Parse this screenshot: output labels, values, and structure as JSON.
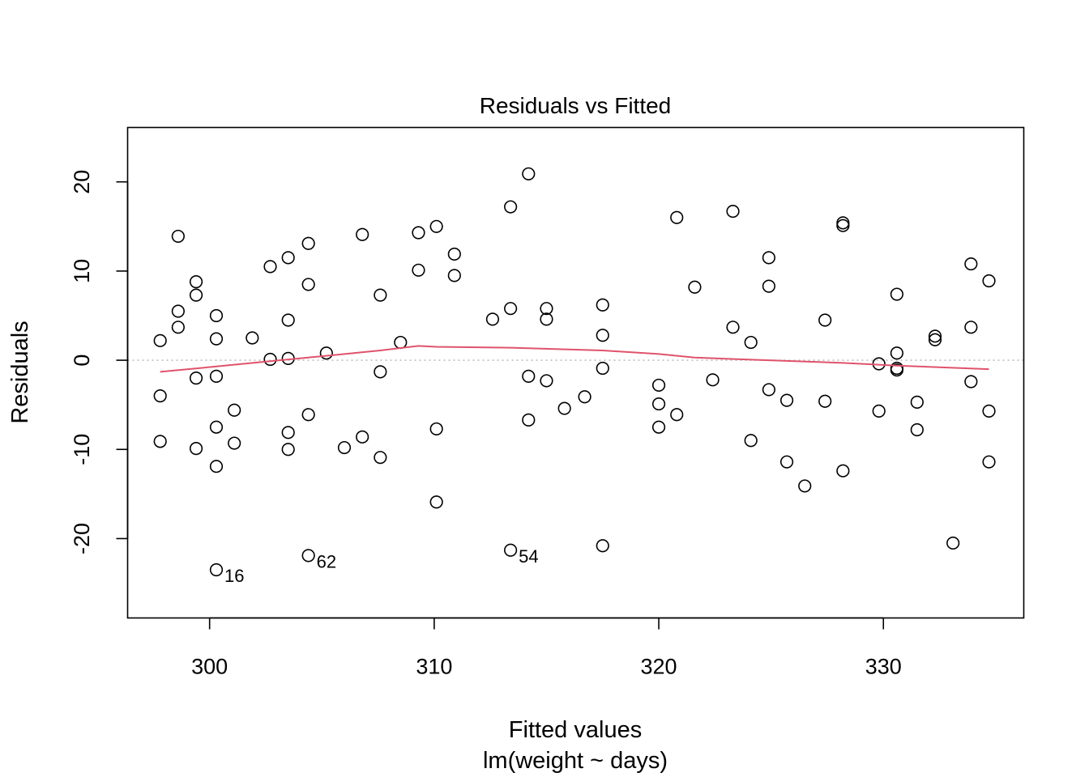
{
  "chart_data": {
    "type": "scatter",
    "title": "Residuals vs Fitted",
    "xlabel": "Fitted values",
    "sublabel": "lm(weight ~ days)",
    "ylabel": "Residuals",
    "xlim": [
      296.35,
      336.25
    ],
    "ylim": [
      -28.9,
      26.1
    ],
    "x_ticks": [
      300,
      310,
      320,
      330
    ],
    "x_tick_labels": [
      "300",
      "310",
      "320",
      "330"
    ],
    "y_ticks": [
      -20,
      -10,
      0,
      10,
      20
    ],
    "y_tick_labels": [
      "-20",
      "-10",
      "0",
      "10",
      "20"
    ],
    "zero_line": {
      "y": 0,
      "color": "#bebebe",
      "style": "dotted"
    },
    "smooth_color": "#df536b",
    "point_style": "open-circle",
    "points": [
      {
        "x": 297.8,
        "y": 2.2
      },
      {
        "x": 297.8,
        "y": -4.0
      },
      {
        "x": 297.8,
        "y": -9.1
      },
      {
        "x": 298.6,
        "y": 13.9
      },
      {
        "x": 298.6,
        "y": 5.5
      },
      {
        "x": 298.6,
        "y": 3.7
      },
      {
        "x": 299.4,
        "y": 8.8
      },
      {
        "x": 299.4,
        "y": 7.3
      },
      {
        "x": 299.4,
        "y": -2.0
      },
      {
        "x": 299.4,
        "y": -9.9
      },
      {
        "x": 300.3,
        "y": 5.0
      },
      {
        "x": 300.3,
        "y": 2.4
      },
      {
        "x": 300.3,
        "y": -1.8
      },
      {
        "x": 300.3,
        "y": -7.5
      },
      {
        "x": 300.3,
        "y": -11.9
      },
      {
        "x": 300.3,
        "y": -23.5
      },
      {
        "x": 301.1,
        "y": -5.6
      },
      {
        "x": 301.1,
        "y": -9.3
      },
      {
        "x": 301.9,
        "y": 2.5
      },
      {
        "x": 302.7,
        "y": 10.5
      },
      {
        "x": 302.7,
        "y": 0.1
      },
      {
        "x": 303.5,
        "y": 11.5
      },
      {
        "x": 303.5,
        "y": 4.5
      },
      {
        "x": 303.5,
        "y": 0.2
      },
      {
        "x": 303.5,
        "y": -8.1
      },
      {
        "x": 303.5,
        "y": -10.0
      },
      {
        "x": 304.4,
        "y": 13.1
      },
      {
        "x": 304.4,
        "y": 8.5
      },
      {
        "x": 304.4,
        "y": -6.1
      },
      {
        "x": 304.4,
        "y": -21.9
      },
      {
        "x": 305.2,
        "y": 0.8
      },
      {
        "x": 306.0,
        "y": -9.8
      },
      {
        "x": 306.8,
        "y": 14.1
      },
      {
        "x": 306.8,
        "y": -8.6
      },
      {
        "x": 307.6,
        "y": 7.3
      },
      {
        "x": 307.6,
        "y": -1.3
      },
      {
        "x": 307.6,
        "y": -10.9
      },
      {
        "x": 308.5,
        "y": 2.0
      },
      {
        "x": 309.3,
        "y": 14.3
      },
      {
        "x": 309.3,
        "y": 10.1
      },
      {
        "x": 310.1,
        "y": 15.0
      },
      {
        "x": 310.1,
        "y": -7.7
      },
      {
        "x": 310.1,
        "y": -15.9
      },
      {
        "x": 310.9,
        "y": 11.9
      },
      {
        "x": 310.9,
        "y": 9.5
      },
      {
        "x": 312.6,
        "y": 4.6
      },
      {
        "x": 313.4,
        "y": 17.2
      },
      {
        "x": 313.4,
        "y": 5.8
      },
      {
        "x": 313.4,
        "y": -21.3
      },
      {
        "x": 314.2,
        "y": 20.9
      },
      {
        "x": 314.2,
        "y": -1.8
      },
      {
        "x": 314.2,
        "y": -6.7
      },
      {
        "x": 315.0,
        "y": 5.8
      },
      {
        "x": 315.0,
        "y": 4.6
      },
      {
        "x": 315.0,
        "y": -2.3
      },
      {
        "x": 315.8,
        "y": -5.4
      },
      {
        "x": 316.7,
        "y": -4.1
      },
      {
        "x": 317.5,
        "y": 6.2
      },
      {
        "x": 317.5,
        "y": 2.8
      },
      {
        "x": 317.5,
        "y": -0.9
      },
      {
        "x": 317.5,
        "y": -20.8
      },
      {
        "x": 320.0,
        "y": -2.8
      },
      {
        "x": 320.0,
        "y": -4.9
      },
      {
        "x": 320.0,
        "y": -7.5
      },
      {
        "x": 320.8,
        "y": 16.0
      },
      {
        "x": 320.8,
        "y": -6.1
      },
      {
        "x": 321.6,
        "y": 8.2
      },
      {
        "x": 322.4,
        "y": -2.2
      },
      {
        "x": 323.3,
        "y": 16.7
      },
      {
        "x": 323.3,
        "y": 3.7
      },
      {
        "x": 324.1,
        "y": 2.0
      },
      {
        "x": 324.1,
        "y": -9.0
      },
      {
        "x": 324.9,
        "y": 11.5
      },
      {
        "x": 324.9,
        "y": 8.3
      },
      {
        "x": 324.9,
        "y": -3.3
      },
      {
        "x": 325.7,
        "y": -4.5
      },
      {
        "x": 325.7,
        "y": -11.4
      },
      {
        "x": 326.5,
        "y": -14.1
      },
      {
        "x": 327.4,
        "y": 4.5
      },
      {
        "x": 327.4,
        "y": -4.6
      },
      {
        "x": 328.2,
        "y": 15.4
      },
      {
        "x": 328.2,
        "y": 15.1
      },
      {
        "x": 328.2,
        "y": -12.4
      },
      {
        "x": 329.8,
        "y": -0.4
      },
      {
        "x": 329.8,
        "y": -5.7
      },
      {
        "x": 330.6,
        "y": 7.4
      },
      {
        "x": 330.6,
        "y": 0.8
      },
      {
        "x": 330.6,
        "y": -0.9
      },
      {
        "x": 330.6,
        "y": -1.1
      },
      {
        "x": 331.5,
        "y": -4.7
      },
      {
        "x": 331.5,
        "y": -7.8
      },
      {
        "x": 332.3,
        "y": 2.7
      },
      {
        "x": 332.3,
        "y": 2.3
      },
      {
        "x": 333.1,
        "y": -20.5
      },
      {
        "x": 333.9,
        "y": 10.8
      },
      {
        "x": 333.9,
        "y": 3.7
      },
      {
        "x": 333.9,
        "y": -2.4
      },
      {
        "x": 334.7,
        "y": 8.9
      },
      {
        "x": 334.7,
        "y": -5.7
      },
      {
        "x": 334.7,
        "y": -11.4
      }
    ],
    "labeled_points": [
      {
        "label": "16",
        "x": 300.3,
        "y": -23.5
      },
      {
        "label": "62",
        "x": 304.4,
        "y": -21.9
      },
      {
        "label": "54",
        "x": 313.4,
        "y": -21.3
      }
    ],
    "smooth": [
      {
        "x": 297.8,
        "y": -1.3
      },
      {
        "x": 300.3,
        "y": -0.7
      },
      {
        "x": 302.7,
        "y": -0.1
      },
      {
        "x": 305.2,
        "y": 0.5
      },
      {
        "x": 307.6,
        "y": 1.1
      },
      {
        "x": 309.3,
        "y": 1.6
      },
      {
        "x": 310.1,
        "y": 1.5
      },
      {
        "x": 313.4,
        "y": 1.4
      },
      {
        "x": 317.5,
        "y": 1.1
      },
      {
        "x": 320.0,
        "y": 0.7
      },
      {
        "x": 321.6,
        "y": 0.3
      },
      {
        "x": 324.9,
        "y": 0.0
      },
      {
        "x": 328.2,
        "y": -0.3
      },
      {
        "x": 330.6,
        "y": -0.6
      },
      {
        "x": 334.7,
        "y": -1.0
      }
    ]
  }
}
